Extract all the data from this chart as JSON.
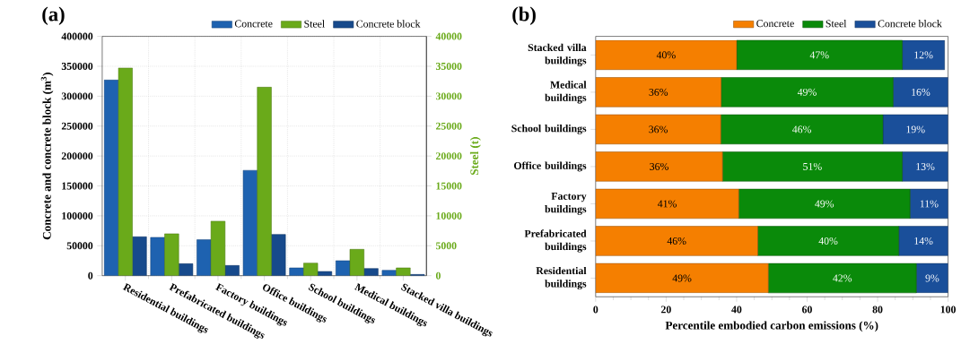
{
  "chart_data": [
    {
      "type": "bar",
      "title": "(a)",
      "ylabel": "Concrete and concrete block (m$^{3}$)",
      "y2label": "Steel (t)",
      "categories": [
        "Residential buildings",
        "Prefabricated buildings",
        "Factory buildings",
        "Office buildings",
        "School buildings",
        "Medical buildings",
        "Stacked villa buildings"
      ],
      "series": [
        {
          "name": "Concrete",
          "color": "#1e62b0",
          "values": [
            327000,
            64000,
            60000,
            176000,
            13000,
            25000,
            9000
          ]
        },
        {
          "name": "Steel",
          "color": "#6aaa1a",
          "axis": "y2",
          "values": [
            34700,
            7000,
            9100,
            31500,
            2100,
            4400,
            1300
          ]
        },
        {
          "name": "Concrete block",
          "color": "#174a8c",
          "values": [
            65000,
            20000,
            17000,
            69000,
            7000,
            12000,
            2000
          ]
        }
      ],
      "ylim": [
        0,
        400000
      ],
      "yticks": [
        0,
        50000,
        100000,
        150000,
        200000,
        250000,
        300000,
        350000,
        400000
      ],
      "y2lim": [
        0,
        40000
      ],
      "y2ticks": [
        0,
        5000,
        10000,
        15000,
        20000,
        25000,
        30000,
        35000,
        40000
      ],
      "grid": true,
      "legend": "top right"
    },
    {
      "type": "bar",
      "title": "(b)",
      "orientation": "horizontal",
      "stacked": true,
      "xlabel": "Percentile embodied carbon emissions (%)",
      "categories": [
        "Stacked villa buildings",
        "Medical buildings",
        "School buildings",
        "Office buildings",
        "Factory buildings",
        "Prefabricated buildings",
        "Residential buildings"
      ],
      "series": [
        {
          "name": "Concrete",
          "color": "#f57f00",
          "values": [
            40,
            35.6,
            35.5,
            36,
            40.6,
            46,
            49
          ],
          "value_labels": [
            "40%",
            "36%",
            "36%",
            "36%",
            "41%",
            "46%",
            "49%"
          ]
        },
        {
          "name": "Steel",
          "color": "#0a8a0a",
          "values": [
            47,
            48.8,
            46,
            51,
            48.6,
            40,
            42
          ],
          "value_labels": [
            "47%",
            "49%",
            "46%",
            "51%",
            "49%",
            "40%",
            "42%"
          ]
        },
        {
          "name": "Concrete block",
          "color": "#1a4f9a",
          "values": [
            12,
            15.6,
            18.5,
            13,
            10.8,
            14,
            9
          ],
          "value_labels": [
            "12%",
            "16%",
            "19%",
            "13%",
            "11%",
            "14%",
            "9%"
          ]
        }
      ],
      "xlim": [
        0,
        100
      ],
      "xticks": [
        0,
        20,
        40,
        60,
        80,
        100
      ],
      "legend": "top right"
    }
  ]
}
